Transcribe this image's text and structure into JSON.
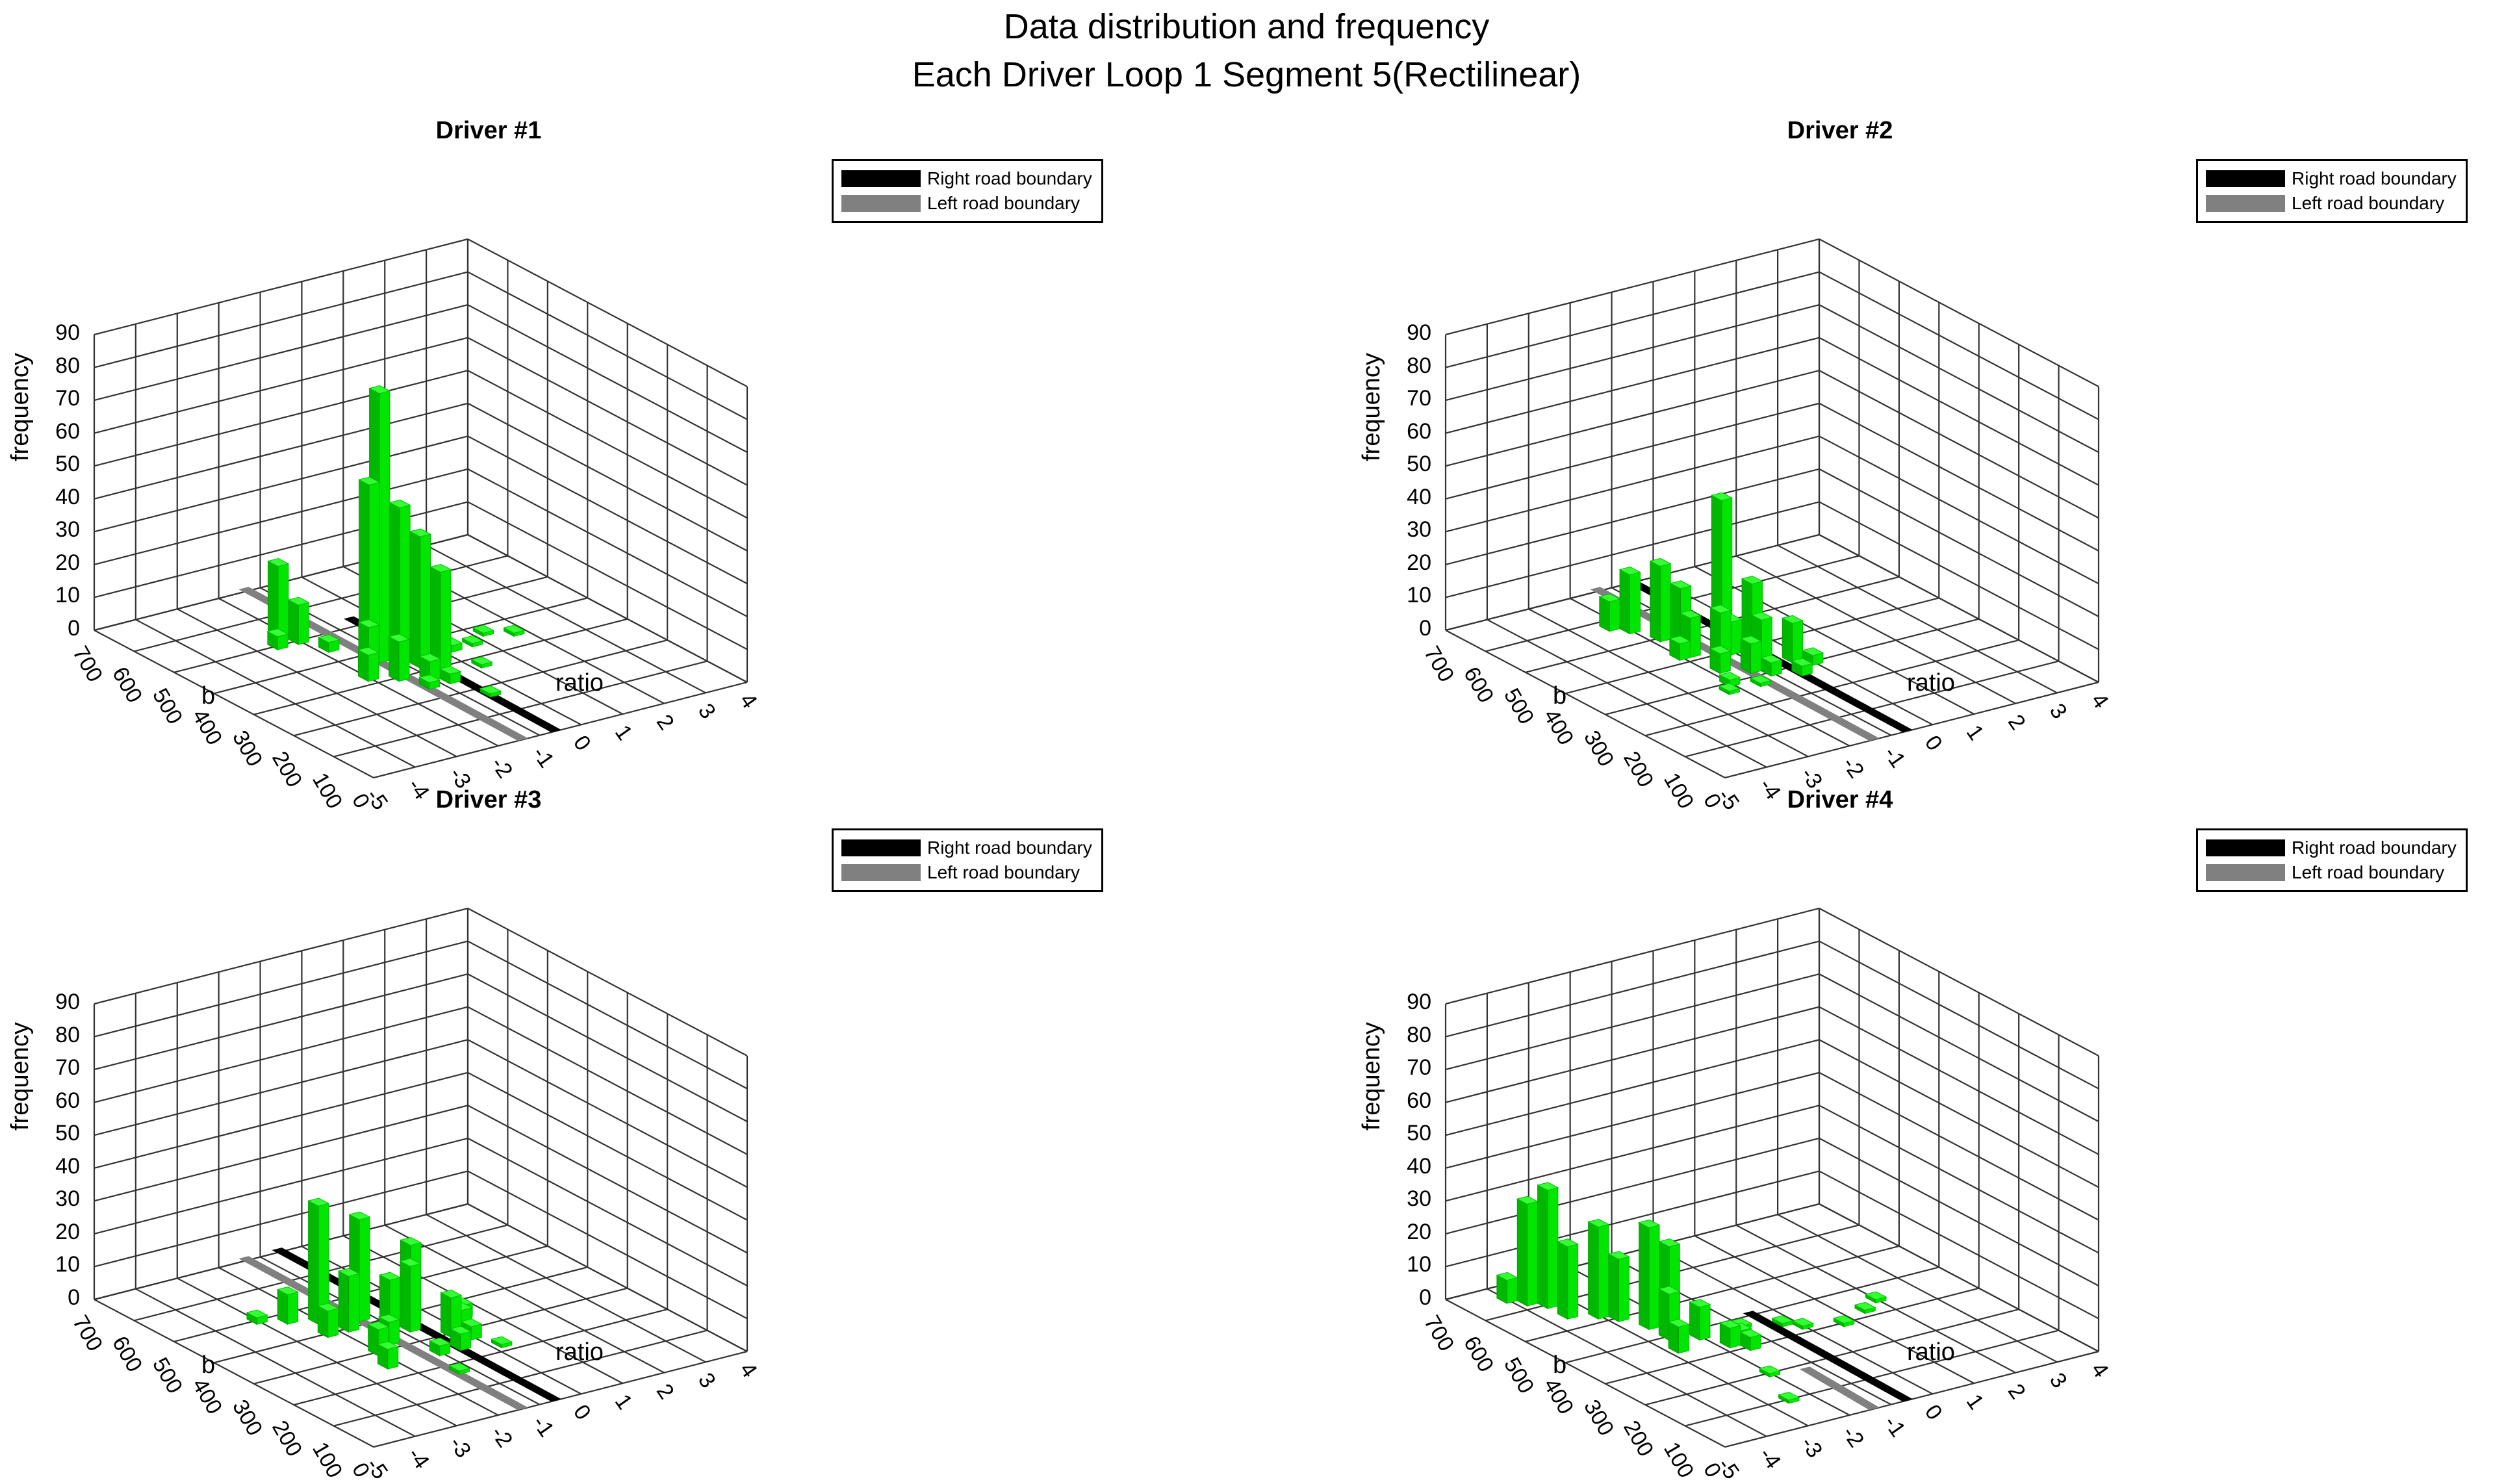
{
  "figure": {
    "title_line1": "Data distribution and frequency",
    "title_line2": "Each Driver  Loop 1 Segment 5(Rectilinear)"
  },
  "colors": {
    "bar_face": "#00e600",
    "bar_top": "#33ff33",
    "bar_side": "#00b800",
    "right_boundary": "#000000",
    "left_boundary": "#808080",
    "grid": "#333333"
  },
  "axes": {
    "z_label": "frequency",
    "x_label": "ratio",
    "y_label": "b",
    "z_ticks": [
      "0",
      "10",
      "20",
      "30",
      "40",
      "50",
      "60",
      "70",
      "80",
      "90"
    ],
    "x_ticks": [
      "-5",
      "-4",
      "-3",
      "-2",
      "-1",
      "0",
      "1",
      "2",
      "3",
      "4"
    ],
    "y_ticks": [
      "0",
      "100",
      "200",
      "300",
      "400",
      "500",
      "600",
      "700"
    ]
  },
  "legend": {
    "right_label": "Right road boundary",
    "left_label": "Left road boundary"
  },
  "panels": [
    {
      "title": "Driver #1"
    },
    {
      "title": "Driver #2"
    },
    {
      "title": "Driver #3"
    },
    {
      "title": "Driver #4"
    }
  ],
  "chart_data": [
    {
      "type": "bar3d",
      "title": "Driver #1",
      "xlabel": "ratio",
      "ylabel": "b",
      "zlabel": "frequency",
      "xlim": [
        -5,
        4
      ],
      "ylim": [
        0,
        700
      ],
      "zlim": [
        0,
        90
      ],
      "grid": true,
      "legend": [
        "Right road boundary",
        "Left road boundary"
      ],
      "boundaries": {
        "right": {
          "ratio": -0.6,
          "b_from": 0,
          "b_to": 520
        },
        "left": {
          "ratio": -1.4,
          "b_from": 0,
          "b_to": 700
        }
      },
      "bars": [
        {
          "ratio": -2.25,
          "b": 525,
          "freq": 23
        },
        {
          "ratio": -2.0,
          "b": 500,
          "freq": 12
        },
        {
          "ratio": -2.5,
          "b": 500,
          "freq": 4
        },
        {
          "ratio": -1.75,
          "b": 450,
          "freq": 3
        },
        {
          "ratio": -1.25,
          "b": 375,
          "freq": 82
        },
        {
          "ratio": -1.5,
          "b": 375,
          "freq": 55
        },
        {
          "ratio": -1.0,
          "b": 350,
          "freq": 48
        },
        {
          "ratio": -0.75,
          "b": 325,
          "freq": 40
        },
        {
          "ratio": -0.5,
          "b": 300,
          "freq": 30
        },
        {
          "ratio": -1.75,
          "b": 350,
          "freq": 14
        },
        {
          "ratio": -2.0,
          "b": 325,
          "freq": 8
        },
        {
          "ratio": -1.5,
          "b": 300,
          "freq": 12
        },
        {
          "ratio": -1.0,
          "b": 275,
          "freq": 6
        },
        {
          "ratio": -0.75,
          "b": 250,
          "freq": 3
        },
        {
          "ratio": -1.25,
          "b": 250,
          "freq": 2
        },
        {
          "ratio": -0.25,
          "b": 325,
          "freq": 3
        },
        {
          "ratio": 0.25,
          "b": 350,
          "freq": 2
        },
        {
          "ratio": 0.75,
          "b": 350,
          "freq": 1
        },
        {
          "ratio": 1.25,
          "b": 375,
          "freq": 1
        },
        {
          "ratio": 1.75,
          "b": 350,
          "freq": 1
        },
        {
          "ratio": 0.25,
          "b": 275,
          "freq": 1
        },
        {
          "ratio": -0.5,
          "b": 175,
          "freq": 1
        }
      ]
    },
    {
      "type": "bar3d",
      "title": "Driver #2",
      "xlabel": "ratio",
      "ylabel": "b",
      "zlabel": "frequency",
      "xlim": [
        -5,
        4
      ],
      "ylim": [
        0,
        700
      ],
      "zlim": [
        0,
        90
      ],
      "grid": true,
      "legend": [
        "Right road boundary",
        "Left road boundary"
      ],
      "boundaries": {
        "right": {
          "ratio": -0.6,
          "b_from": 0,
          "b_to": 700
        },
        "left": {
          "ratio": -1.4,
          "b_from": 0,
          "b_to": 700
        }
      },
      "bars": [
        {
          "ratio": -0.75,
          "b": 450,
          "freq": 43
        },
        {
          "ratio": -0.5,
          "b": 400,
          "freq": 20
        },
        {
          "ratio": -1.75,
          "b": 500,
          "freq": 23
        },
        {
          "ratio": -2.0,
          "b": 550,
          "freq": 18
        },
        {
          "ratio": -2.25,
          "b": 575,
          "freq": 9
        },
        {
          "ratio": -1.5,
          "b": 475,
          "freq": 17
        },
        {
          "ratio": -1.75,
          "b": 425,
          "freq": 12
        },
        {
          "ratio": -1.0,
          "b": 400,
          "freq": 10
        },
        {
          "ratio": -1.5,
          "b": 375,
          "freq": 16
        },
        {
          "ratio": -0.75,
          "b": 350,
          "freq": 13
        },
        {
          "ratio": -0.25,
          "b": 325,
          "freq": 12
        },
        {
          "ratio": -1.25,
          "b": 325,
          "freq": 9
        },
        {
          "ratio": -1.75,
          "b": 350,
          "freq": 6
        },
        {
          "ratio": -2.0,
          "b": 425,
          "freq": 5
        },
        {
          "ratio": -1.0,
          "b": 300,
          "freq": 4
        },
        {
          "ratio": -0.5,
          "b": 275,
          "freq": 3
        },
        {
          "ratio": 0.0,
          "b": 300,
          "freq": 3
        },
        {
          "ratio": -2.0,
          "b": 300,
          "freq": 2
        },
        {
          "ratio": -2.25,
          "b": 275,
          "freq": 1
        },
        {
          "ratio": -1.5,
          "b": 275,
          "freq": 1
        }
      ]
    },
    {
      "type": "bar3d",
      "title": "Driver #3",
      "xlabel": "ratio",
      "ylabel": "b",
      "zlabel": "frequency",
      "xlim": [
        -5,
        4
      ],
      "ylim": [
        0,
        700
      ],
      "zlim": [
        0,
        90
      ],
      "grid": true,
      "legend": [
        "Right road boundary",
        "Left road boundary"
      ],
      "boundaries": {
        "right": {
          "ratio": -0.6,
          "b_from": 0,
          "b_to": 700
        },
        "left": {
          "ratio": -1.4,
          "b_from": 0,
          "b_to": 700
        }
      },
      "bars": [
        {
          "ratio": -2.0,
          "b": 450,
          "freq": 36
        },
        {
          "ratio": -1.25,
          "b": 425,
          "freq": 31
        },
        {
          "ratio": -0.75,
          "b": 350,
          "freq": 20
        },
        {
          "ratio": -0.5,
          "b": 375,
          "freq": 24
        },
        {
          "ratio": -1.75,
          "b": 400,
          "freq": 17
        },
        {
          "ratio": -1.0,
          "b": 375,
          "freq": 15
        },
        {
          "ratio": -0.25,
          "b": 300,
          "freq": 12
        },
        {
          "ratio": -2.5,
          "b": 475,
          "freq": 9
        },
        {
          "ratio": -2.25,
          "b": 400,
          "freq": 8
        },
        {
          "ratio": -1.5,
          "b": 325,
          "freq": 7
        },
        {
          "ratio": -2.0,
          "b": 300,
          "freq": 8
        },
        {
          "ratio": -2.25,
          "b": 250,
          "freq": 6
        },
        {
          "ratio": -0.5,
          "b": 250,
          "freq": 5
        },
        {
          "ratio": 0.0,
          "b": 275,
          "freq": 4
        },
        {
          "ratio": 0.25,
          "b": 325,
          "freq": 5
        },
        {
          "ratio": 0.5,
          "b": 350,
          "freq": 4
        },
        {
          "ratio": -1.0,
          "b": 250,
          "freq": 3
        },
        {
          "ratio": -3.0,
          "b": 500,
          "freq": 2
        },
        {
          "ratio": -1.25,
          "b": 175,
          "freq": 1
        },
        {
          "ratio": 0.25,
          "b": 225,
          "freq": 1
        }
      ]
    },
    {
      "type": "bar3d",
      "title": "Driver #4",
      "xlabel": "ratio",
      "ylabel": "b",
      "zlabel": "frequency",
      "xlim": [
        -5,
        4
      ],
      "ylim": [
        0,
        700
      ],
      "zlim": [
        0,
        90
      ],
      "grid": true,
      "legend": [
        "Right road boundary",
        "Left road boundary"
      ],
      "boundaries": {
        "right": {
          "ratio": -0.6,
          "b_from": 0,
          "b_to": 400
        },
        "left": {
          "ratio": -1.4,
          "b_from": 0,
          "b_to": 175
        }
      },
      "bars": [
        {
          "ratio": -3.5,
          "b": 600,
          "freq": 36
        },
        {
          "ratio": -3.75,
          "b": 625,
          "freq": 31
        },
        {
          "ratio": -3.5,
          "b": 550,
          "freq": 22
        },
        {
          "ratio": -4.0,
          "b": 650,
          "freq": 7
        },
        {
          "ratio": -3.0,
          "b": 525,
          "freq": 28
        },
        {
          "ratio": -2.75,
          "b": 500,
          "freq": 19
        },
        {
          "ratio": -2.5,
          "b": 450,
          "freq": 31
        },
        {
          "ratio": -2.25,
          "b": 425,
          "freq": 26
        },
        {
          "ratio": -2.5,
          "b": 400,
          "freq": 14
        },
        {
          "ratio": -2.0,
          "b": 375,
          "freq": 10
        },
        {
          "ratio": -2.75,
          "b": 350,
          "freq": 8
        },
        {
          "ratio": -1.75,
          "b": 325,
          "freq": 6
        },
        {
          "ratio": -1.5,
          "b": 300,
          "freq": 4
        },
        {
          "ratio": -1.25,
          "b": 350,
          "freq": 2
        },
        {
          "ratio": -1.0,
          "b": 375,
          "freq": 1
        },
        {
          "ratio": -0.25,
          "b": 350,
          "freq": 1
        },
        {
          "ratio": 0.0,
          "b": 325,
          "freq": 1
        },
        {
          "ratio": 0.75,
          "b": 300,
          "freq": 1
        },
        {
          "ratio": 1.5,
          "b": 325,
          "freq": 1
        },
        {
          "ratio": 2.0,
          "b": 350,
          "freq": 1
        },
        {
          "ratio": -2.0,
          "b": 200,
          "freq": 1
        },
        {
          "ratio": -2.5,
          "b": 100,
          "freq": 1
        }
      ]
    }
  ]
}
